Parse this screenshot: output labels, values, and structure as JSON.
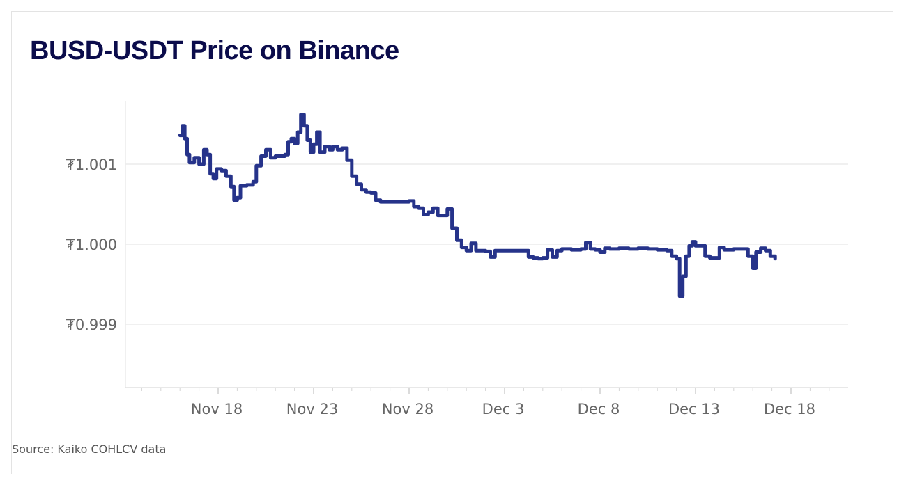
{
  "header": {
    "title": "BUSD-USDT Price on Binance"
  },
  "footer": {
    "source": "Source: Kaiko COHLCV data"
  },
  "colors": {
    "line": "#26338a",
    "grid": "#ececec",
    "axis": "#e0e0e0",
    "title": "#0b0c4b",
    "tick_text": "#666666"
  },
  "chart_data": {
    "type": "line",
    "title": "BUSD-USDT Price on Binance",
    "xlabel": "",
    "ylabel": "",
    "grid": "horizontal",
    "legend": "none",
    "x_ticks": [
      "Nov 18",
      "Nov 23",
      "Nov 28",
      "Dec 3",
      "Dec 8",
      "Dec 13",
      "Dec 18"
    ],
    "y_ticks": [
      "₮0.999",
      "₮1.000",
      "₮1.001"
    ],
    "y_tick_values": [
      0.999,
      1.0,
      1.001
    ],
    "ylim": [
      0.9982,
      1.0018
    ],
    "series": [
      {
        "values": [
          [
            "Nov 16 00:00",
            1.00136
          ],
          [
            "Nov 16 03:00",
            1.00148
          ],
          [
            "Nov 16 06:00",
            1.00132
          ],
          [
            "Nov 16 09:00",
            1.00112
          ],
          [
            "Nov 16 12:00",
            1.00102
          ],
          [
            "Nov 16 18:00",
            1.00108
          ],
          [
            "Nov 17 00:00",
            1.001
          ],
          [
            "Nov 17 06:00",
            1.00118
          ],
          [
            "Nov 17 10:00",
            1.00112
          ],
          [
            "Nov 17 14:00",
            1.00088
          ],
          [
            "Nov 17 18:00",
            1.00082
          ],
          [
            "Nov 17 22:00",
            1.00094
          ],
          [
            "Nov 18 04:00",
            1.00092
          ],
          [
            "Nov 18 10:00",
            1.00085
          ],
          [
            "Nov 18 16:00",
            1.00072
          ],
          [
            "Nov 18 20:00",
            1.00055
          ],
          [
            "Nov 19 00:00",
            1.00058
          ],
          [
            "Nov 19 04:00",
            1.00073
          ],
          [
            "Nov 19 12:00",
            1.00074
          ],
          [
            "Nov 19 20:00",
            1.00078
          ],
          [
            "Nov 20 00:00",
            1.00098
          ],
          [
            "Nov 20 06:00",
            1.0011
          ],
          [
            "Nov 20 12:00",
            1.00118
          ],
          [
            "Nov 20 18:00",
            1.00108
          ],
          [
            "Nov 21 00:00",
            1.0011
          ],
          [
            "Nov 21 06:00",
            1.0011
          ],
          [
            "Nov 21 12:00",
            1.00112
          ],
          [
            "Nov 21 16:00",
            1.00128
          ],
          [
            "Nov 21 20:00",
            1.00132
          ],
          [
            "Nov 22 00:00",
            1.00126
          ],
          [
            "Nov 22 04:00",
            1.0014
          ],
          [
            "Nov 22 08:00",
            1.00162
          ],
          [
            "Nov 22 12:00",
            1.00148
          ],
          [
            "Nov 22 16:00",
            1.0013
          ],
          [
            "Nov 22 20:00",
            1.00115
          ],
          [
            "Nov 23 00:00",
            1.00125
          ],
          [
            "Nov 23 04:00",
            1.0014
          ],
          [
            "Nov 23 08:00",
            1.00115
          ],
          [
            "Nov 23 14:00",
            1.00122
          ],
          [
            "Nov 23 20:00",
            1.00118
          ],
          [
            "Nov 24 00:00",
            1.00122
          ],
          [
            "Nov 24 06:00",
            1.00118
          ],
          [
            "Nov 24 12:00",
            1.0012
          ],
          [
            "Nov 24 18:00",
            1.00105
          ],
          [
            "Nov 25 00:00",
            1.00085
          ],
          [
            "Nov 25 06:00",
            1.00075
          ],
          [
            "Nov 25 12:00",
            1.00068
          ],
          [
            "Nov 25 18:00",
            1.00065
          ],
          [
            "Nov 26 00:00",
            1.00064
          ],
          [
            "Nov 26 06:00",
            1.00055
          ],
          [
            "Nov 26 12:00",
            1.00053
          ],
          [
            "Nov 27 00:00",
            1.00053
          ],
          [
            "Nov 27 12:00",
            1.00053
          ],
          [
            "Nov 28 00:00",
            1.00054
          ],
          [
            "Nov 28 06:00",
            1.00047
          ],
          [
            "Nov 28 12:00",
            1.00045
          ],
          [
            "Nov 28 18:00",
            1.00037
          ],
          [
            "Nov 29 00:00",
            1.0004
          ],
          [
            "Nov 29 06:00",
            1.00045
          ],
          [
            "Nov 29 12:00",
            1.00036
          ],
          [
            "Nov 29 18:00",
            1.00036
          ],
          [
            "Nov 30 00:00",
            1.00044
          ],
          [
            "Nov 30 06:00",
            1.0002
          ],
          [
            "Nov 30 12:00",
            1.00005
          ],
          [
            "Nov 30 18:00",
            0.99996
          ],
          [
            "Dec 1 00:00",
            0.99992
          ],
          [
            "Dec 1 06:00",
            1.00001
          ],
          [
            "Dec 1 12:00",
            0.99992
          ],
          [
            "Dec 2 00:00",
            0.99991
          ],
          [
            "Dec 2 06:00",
            0.99984
          ],
          [
            "Dec 2 12:00",
            0.99992
          ],
          [
            "Dec 3 00:00",
            0.99992
          ],
          [
            "Dec 3 12:00",
            0.99992
          ],
          [
            "Dec 4 00:00",
            0.99992
          ],
          [
            "Dec 4 06:00",
            0.99984
          ],
          [
            "Dec 4 12:00",
            0.99983
          ],
          [
            "Dec 4 18:00",
            0.99982
          ],
          [
            "Dec 5 00:00",
            0.99983
          ],
          [
            "Dec 5 06:00",
            0.99993
          ],
          [
            "Dec 5 12:00",
            0.99984
          ],
          [
            "Dec 5 18:00",
            0.99992
          ],
          [
            "Dec 6 00:00",
            0.99994
          ],
          [
            "Dec 6 12:00",
            0.99993
          ],
          [
            "Dec 7 00:00",
            0.99994
          ],
          [
            "Dec 7 06:00",
            1.00002
          ],
          [
            "Dec 7 12:00",
            0.99994
          ],
          [
            "Dec 7 18:00",
            0.99993
          ],
          [
            "Dec 8 00:00",
            0.9999
          ],
          [
            "Dec 8 06:00",
            0.99995
          ],
          [
            "Dec 8 12:00",
            0.99994
          ],
          [
            "Dec 9 00:00",
            0.99995
          ],
          [
            "Dec 9 12:00",
            0.99994
          ],
          [
            "Dec 10 00:00",
            0.99995
          ],
          [
            "Dec 10 12:00",
            0.99994
          ],
          [
            "Dec 11 00:00",
            0.99993
          ],
          [
            "Dec 11 12:00",
            0.99992
          ],
          [
            "Dec 11 18:00",
            0.99985
          ],
          [
            "Dec 12 00:00",
            0.99982
          ],
          [
            "Dec 12 04:00",
            0.99935
          ],
          [
            "Dec 12 08:00",
            0.9996
          ],
          [
            "Dec 12 12:00",
            0.99985
          ],
          [
            "Dec 12 16:00",
            0.99998
          ],
          [
            "Dec 12 20:00",
            1.00003
          ],
          [
            "Dec 13 00:00",
            0.99998
          ],
          [
            "Dec 13 06:00",
            0.99998
          ],
          [
            "Dec 13 12:00",
            0.99985
          ],
          [
            "Dec 13 18:00",
            0.99983
          ],
          [
            "Dec 14 00:00",
            0.99983
          ],
          [
            "Dec 14 06:00",
            0.99996
          ],
          [
            "Dec 14 12:00",
            0.99993
          ],
          [
            "Dec 15 00:00",
            0.99994
          ],
          [
            "Dec 15 12:00",
            0.99994
          ],
          [
            "Dec 15 18:00",
            0.99985
          ],
          [
            "Dec 16 00:00",
            0.9997
          ],
          [
            "Dec 16 04:00",
            0.9999
          ],
          [
            "Dec 16 10:00",
            0.99995
          ],
          [
            "Dec 16 16:00",
            0.99992
          ],
          [
            "Dec 16 22:00",
            0.99985
          ],
          [
            "Dec 17 04:00",
            0.99982
          ]
        ]
      }
    ]
  }
}
